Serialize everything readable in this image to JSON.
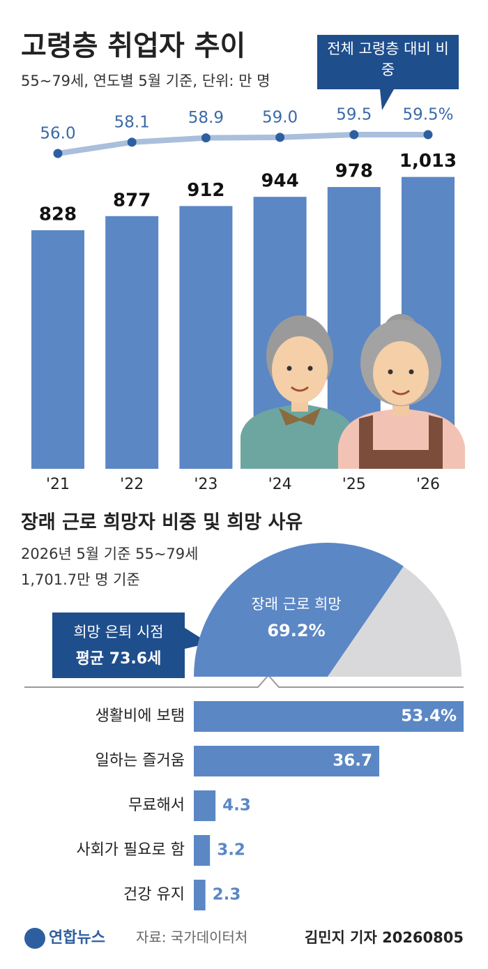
{
  "chart_data": [
    {
      "type": "bar",
      "title": "고령층 취업자 추이",
      "subtitle": "55~79세, 연도별 5월 기준, 단위: 만 명",
      "categories": [
        "'21",
        "'22",
        "'23",
        "'24",
        "'25",
        "'26"
      ],
      "series": [
        {
          "type": "bar",
          "color": "#5b87c5",
          "values": [
            828,
            877,
            912,
            944,
            978,
            1013
          ],
          "value_labels": [
            "828",
            "877",
            "912",
            "944",
            "978",
            "1,013"
          ]
        },
        {
          "type": "line",
          "name": "전체 고령층 대비 비중",
          "color": "#a9bfdc",
          "marker_color": "#2d5fa0",
          "values": [
            56.0,
            58.1,
            58.9,
            59.0,
            59.5,
            59.5
          ],
          "value_labels": [
            "56.0",
            "58.1",
            "58.9",
            "59.0",
            "59.5",
            "59.5%"
          ]
        }
      ]
    },
    {
      "type": "pie",
      "shape": "semicircle",
      "title": "장래 근로 희망자 비중 및 희망 사유",
      "subtitle": "2026년 5월 기준 55~79세",
      "note": "1,701.7만 명 기준",
      "categories": [
        "장래 근로 희망",
        null
      ],
      "values": [
        69.2,
        30.8
      ],
      "value_labels": [
        "69.2%",
        null
      ],
      "colors": [
        "#5b87c5",
        "#d9d9db"
      ],
      "annotations": [
        "희망 은퇴 시점",
        "평균 73.6세"
      ]
    },
    {
      "type": "bar",
      "orientation": "horizontal",
      "color": "#5b87c5",
      "categories": [
        "생활비에 보탬",
        "일하는 즐거움",
        "무료해서",
        "사회가 필요로 함",
        "건강 유지"
      ],
      "values": [
        53.4,
        36.7,
        4.3,
        3.2,
        2.3
      ],
      "value_labels": [
        "53.4%",
        "36.7",
        "4.3",
        "3.2",
        "2.3"
      ]
    }
  ],
  "footer": {
    "logo": "연합뉴스",
    "source": "자료: 국가데이터처",
    "credit": "김민지 기자 20260805"
  }
}
